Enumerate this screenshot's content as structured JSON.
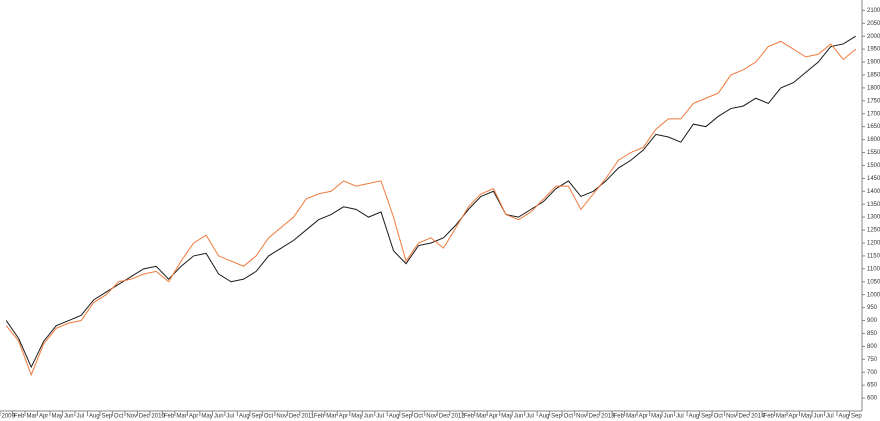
{
  "chart_data": {
    "type": "line",
    "categories": [
      "2009",
      "Feb",
      "Mar",
      "Apr",
      "May",
      "Jun",
      "Jul",
      "Aug",
      "Sep",
      "Oct",
      "Nov",
      "Dec",
      "2010",
      "Feb",
      "Mar",
      "Apr",
      "May",
      "Jun",
      "Jul",
      "Aug",
      "Sep",
      "Oct",
      "Nov",
      "Dec",
      "2011",
      "Feb",
      "Mar",
      "Apr",
      "May",
      "Jun",
      "Jul",
      "Aug",
      "Sep",
      "Oct",
      "Nov",
      "Dec",
      "2012",
      "Feb",
      "Mar",
      "Apr",
      "May",
      "Jun",
      "Jul",
      "Aug",
      "Sep",
      "Oct",
      "Nov",
      "Dec",
      "2013",
      "Feb",
      "Mar",
      "Apr",
      "May",
      "Jun",
      "Jul",
      "Aug",
      "Sep",
      "Oct",
      "Nov",
      "Dec",
      "2014",
      "Feb",
      "Mar",
      "Apr",
      "May",
      "Jun",
      "Jul",
      "Aug",
      "Sep"
    ],
    "series": [
      {
        "color": "#1a1a1a",
        "values": [
          900,
          830,
          720,
          820,
          880,
          900,
          920,
          980,
          1010,
          1040,
          1070,
          1100,
          1110,
          1060,
          1110,
          1150,
          1160,
          1080,
          1050,
          1060,
          1090,
          1150,
          1180,
          1210,
          1250,
          1290,
          1310,
          1340,
          1330,
          1300,
          1320,
          1170,
          1120,
          1190,
          1200,
          1220,
          1270,
          1330,
          1380,
          1400,
          1310,
          1300,
          1330,
          1360,
          1410,
          1440,
          1380,
          1400,
          1440,
          1490,
          1520,
          1560,
          1620,
          1610,
          1590,
          1660,
          1650,
          1690,
          1720,
          1730,
          1760,
          1740,
          1800,
          1820,
          1860,
          1900,
          1960,
          1970,
          2000
        ]
      },
      {
        "color": "#f07a3c",
        "values": [
          880,
          820,
          690,
          810,
          870,
          890,
          900,
          970,
          1000,
          1050,
          1060,
          1080,
          1090,
          1050,
          1130,
          1200,
          1230,
          1150,
          1130,
          1110,
          1150,
          1220,
          1260,
          1300,
          1370,
          1390,
          1400,
          1440,
          1420,
          1430,
          1440,
          1300,
          1130,
          1200,
          1220,
          1180,
          1260,
          1340,
          1390,
          1410,
          1310,
          1290,
          1320,
          1370,
          1420,
          1420,
          1330,
          1390,
          1450,
          1520,
          1550,
          1570,
          1640,
          1680,
          1680,
          1740,
          1760,
          1780,
          1850,
          1870,
          1900,
          1960,
          1980,
          1950,
          1920,
          1930,
          1970,
          1910,
          1950
        ]
      }
    ],
    "ylim": [
      550,
      2140
    ],
    "yticks": [
      600,
      650,
      700,
      750,
      800,
      850,
      900,
      950,
      1000,
      1050,
      1100,
      1150,
      1200,
      1250,
      1300,
      1350,
      1400,
      1450,
      1500,
      1550,
      1600,
      1650,
      1700,
      1750,
      1800,
      1850,
      1900,
      1950,
      2000,
      2050,
      2100
    ],
    "grid": false
  }
}
